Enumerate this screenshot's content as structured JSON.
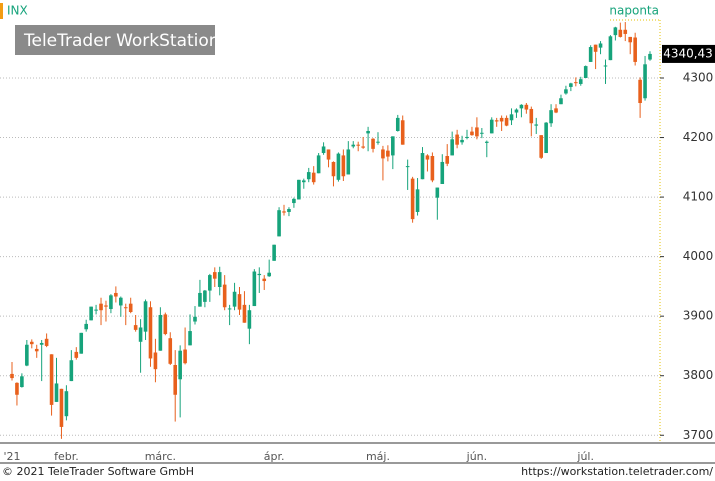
{
  "chart_data": {
    "type": "candlestick",
    "symbol": "INX",
    "brand": "TeleTrader WorkStation",
    "interval": "naponta",
    "footer_left": "© 2021 TeleTrader Software GmbH",
    "footer_right": "https://workstation.teletrader.com/",
    "up_color": "#16a37b",
    "down_color": "#e8601c",
    "ylim": [
      3687,
      4431
    ],
    "yticks": [
      3700,
      3800,
      3900,
      4000,
      4100,
      4200,
      4300
    ],
    "grid": true,
    "last_value": {
      "value": 4340.43,
      "label": "4340,43"
    },
    "categories": [
      "'21",
      null,
      null,
      null,
      null,
      null,
      null,
      null,
      null,
      null,
      null,
      "febr.",
      null,
      null,
      null,
      null,
      null,
      null,
      null,
      null,
      null,
      null,
      null,
      null,
      null,
      null,
      null,
      null,
      null,
      null,
      "márc.",
      null,
      null,
      null,
      null,
      null,
      null,
      null,
      null,
      null,
      null,
      null,
      null,
      null,
      null,
      null,
      null,
      null,
      null,
      null,
      null,
      null,
      null,
      "ápr.",
      null,
      null,
      null,
      null,
      null,
      null,
      null,
      null,
      null,
      null,
      null,
      null,
      null,
      null,
      null,
      null,
      null,
      null,
      null,
      null,
      "máj.",
      null,
      null,
      null,
      null,
      null,
      null,
      null,
      null,
      null,
      null,
      null,
      null,
      null,
      null,
      null,
      null,
      null,
      null,
      null,
      "jún.",
      null,
      null,
      null,
      null,
      null,
      null,
      null,
      null,
      null,
      null,
      null,
      null,
      null,
      null,
      null,
      null,
      null,
      null,
      null,
      null,
      null,
      "júl.",
      null,
      null,
      null,
      null,
      null,
      null,
      null,
      null,
      null,
      null,
      null,
      null,
      null
    ],
    "open": [
      3803,
      3788,
      3781,
      3817,
      3857,
      3845,
      3852,
      3862,
      3836,
      3756,
      3778,
      3732,
      3791,
      3840,
      3837,
      3878,
      3893,
      3910,
      3921,
      3918,
      3912,
      3939,
      3918,
      3915,
      3921,
      3885,
      3857,
      3874,
      3915,
      3839,
      3842,
      3903,
      3863,
      3818,
      3794,
      3844,
      3851,
      3891,
      3916,
      3924,
      3943,
      3974,
      3949,
      3953,
      3913,
      3916,
      3937,
      3919,
      3879,
      3917,
      3969,
      3963,
      3967,
      3993,
      4034,
      4076,
      4075,
      4090,
      4096,
      4125,
      4130,
      4141,
      4140,
      4174,
      4180,
      4159,
      4129,
      4170,
      4138,
      4185,
      4188,
      4185,
      4207,
      4198,
      4192,
      4180,
      4178,
      4170,
      4211,
      4229,
      4151,
      4131,
      4075,
      4130,
      4170,
      4169,
      4099,
      4122,
      4169,
      4170,
      4205,
      4192,
      4201,
      4210,
      4217,
      4207,
      4191,
      4207,
      4229,
      4233,
      4233,
      4229,
      4242,
      4249,
      4255,
      4248,
      4220,
      4204,
      4174,
      4224,
      4249,
      4256,
      4274,
      4285,
      4293,
      4290,
      4300,
      4327,
      4356,
      4351,
      4321,
      4330,
      4372,
      4381,
      4381,
      4369,
      4368,
      4297,
      4266,
      4331
    ],
    "high": [
      3823,
      3789,
      3804,
      3860,
      3861,
      3852,
      3860,
      3871,
      3836,
      3830,
      3778,
      3784,
      3843,
      3848,
      3872,
      3894,
      3916,
      3919,
      3931,
      3926,
      3937,
      3950,
      3933,
      3921,
      3931,
      3902,
      3895,
      3928,
      3925,
      3862,
      3915,
      3906,
      3873,
      3843,
      3851,
      3881,
      3903,
      3917,
      3961,
      3944,
      3971,
      3982,
      3983,
      3969,
      3919,
      3956,
      3949,
      3942,
      3919,
      3979,
      3982,
      3969,
      3995,
      4020,
      4083,
      4087,
      4083,
      4099,
      4129,
      4131,
      4149,
      4152,
      4174,
      4192,
      4180,
      4160,
      4175,
      4180,
      4194,
      4194,
      4193,
      4201,
      4218,
      4199,
      4209,
      4186,
      4187,
      4202,
      4238,
      4237,
      4163,
      4134,
      4132,
      4184,
      4172,
      4175,
      4116,
      4172,
      4189,
      4210,
      4213,
      4203,
      4213,
      4218,
      4234,
      4216,
      4195,
      4234,
      4233,
      4237,
      4237,
      4249,
      4249,
      4256,
      4258,
      4252,
      4233,
      4204,
      4226,
      4256,
      4256,
      4272,
      4287,
      4292,
      4301,
      4302,
      4321,
      4355,
      4356,
      4362,
      4331,
      4372,
      4386,
      4393,
      4394,
      4369,
      4376,
      4301,
      4337,
      4345
    ],
    "low": [
      3792,
      3750,
      3780,
      3816,
      3846,
      3830,
      3791,
      3848,
      3733,
      3756,
      3694,
      3725,
      3791,
      3827,
      3837,
      3874,
      3893,
      3903,
      3885,
      3891,
      3905,
      3923,
      3899,
      3885,
      3905,
      3874,
      3805,
      3860,
      3815,
      3789,
      3842,
      3868,
      3818,
      3723,
      3730,
      3819,
      3851,
      3886,
      3916,
      3915,
      3924,
      3949,
      3935,
      3910,
      3885,
      3910,
      3902,
      3889,
      3853,
      3917,
      3939,
      3944,
      3966,
      3993,
      4034,
      4069,
      4068,
      4082,
      4096,
      4114,
      4125,
      4121,
      4140,
      4171,
      4150,
      4118,
      4126,
      4127,
      4138,
      4182,
      4177,
      4181,
      4177,
      4175,
      4188,
      4128,
      4160,
      4147,
      4210,
      4188,
      4112,
      4057,
      4069,
      4130,
      4143,
      4125,
      4062,
      4122,
      4152,
      4170,
      4182,
      4188,
      4197,
      4203,
      4197,
      4199,
      4167,
      4207,
      4218,
      4211,
      4219,
      4221,
      4233,
      4234,
      4240,
      4202,
      4206,
      4164,
      4174,
      4218,
      4241,
      4256,
      4272,
      4278,
      4286,
      4287,
      4300,
      4327,
      4315,
      4340,
      4290,
      4330,
      4363,
      4368,
      4362,
      4340,
      4321,
      4233,
      4262,
      4329
    ],
    "close": [
      3796,
      3768,
      3799,
      3852,
      3853,
      3841,
      3855,
      3850,
      3751,
      3787,
      3714,
      3774,
      3826,
      3830,
      3872,
      3887,
      3916,
      3911,
      3910,
      3916,
      3935,
      3933,
      3931,
      3914,
      3907,
      3877,
      3881,
      3925,
      3829,
      3811,
      3902,
      3870,
      3820,
      3768,
      3842,
      3821,
      3875,
      3899,
      3939,
      3943,
      3969,
      3963,
      3974,
      3915,
      3913,
      3941,
      3911,
      3889,
      3910,
      3975,
      3971,
      3959,
      3973,
      4020,
      4078,
      4074,
      4080,
      4097,
      4129,
      4128,
      4142,
      4125,
      4170,
      4185,
      4163,
      4135,
      4173,
      4135,
      4180,
      4188,
      4187,
      4183,
      4211,
      4181,
      4193,
      4165,
      4168,
      4202,
      4233,
      4188,
      4152,
      4063,
      4113,
      4174,
      4163,
      4128,
      4116,
      4159,
      4156,
      4197,
      4188,
      4196,
      4201,
      4204,
      4202,
      4208,
      4193,
      4230,
      4227,
      4227,
      4220,
      4239,
      4247,
      4255,
      4247,
      4224,
      4222,
      4166,
      4225,
      4246,
      4242,
      4266,
      4281,
      4291,
      4292,
      4298,
      4320,
      4352,
      4344,
      4358,
      4321,
      4370,
      4385,
      4369,
      4374,
      4360,
      4327,
      4258,
      4323,
      4340.43
    ]
  }
}
